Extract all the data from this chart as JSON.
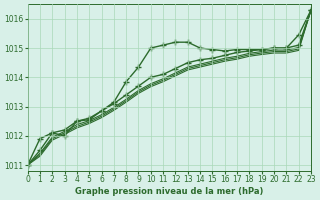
{
  "bg_color": "#d8f0e8",
  "grid_color": "#aad8b8",
  "line_color": "#2d6b2d",
  "text_color": "#2d6b2d",
  "xlabel": "Graphe pression niveau de la mer (hPa)",
  "xlim": [
    0,
    23
  ],
  "ylim": [
    1010.8,
    1016.5
  ],
  "yticks": [
    1011,
    1012,
    1013,
    1014,
    1015,
    1016
  ],
  "xticks": [
    0,
    1,
    2,
    3,
    4,
    5,
    6,
    7,
    8,
    9,
    10,
    11,
    12,
    13,
    14,
    15,
    16,
    17,
    18,
    19,
    20,
    21,
    22,
    23
  ],
  "series_main1": [
    1011.0,
    1011.9,
    1012.1,
    1012.0,
    1012.5,
    1012.55,
    1012.85,
    1013.15,
    1013.85,
    1014.35,
    1015.0,
    1015.1,
    1015.2,
    1015.2,
    1015.0,
    1014.95,
    1014.9,
    1014.95,
    1014.95,
    1014.95,
    1015.0,
    1015.0,
    1015.45,
    1016.3
  ],
  "series_main2": [
    1011.0,
    1011.5,
    1012.1,
    1012.2,
    1012.5,
    1012.6,
    1012.85,
    1013.1,
    1013.4,
    1013.7,
    1014.0,
    1014.1,
    1014.3,
    1014.5,
    1014.6,
    1014.65,
    1014.75,
    1014.85,
    1014.9,
    1014.95,
    1015.0,
    1015.0,
    1015.1,
    1016.3
  ],
  "series_line1": [
    1011.0,
    1011.4,
    1011.95,
    1012.15,
    1012.38,
    1012.52,
    1012.72,
    1012.97,
    1013.25,
    1013.55,
    1013.78,
    1013.95,
    1014.15,
    1014.35,
    1014.45,
    1014.55,
    1014.65,
    1014.72,
    1014.82,
    1014.88,
    1014.93,
    1014.93,
    1015.02,
    1016.3
  ],
  "series_line2": [
    1011.0,
    1011.35,
    1011.9,
    1012.1,
    1012.32,
    1012.47,
    1012.67,
    1012.92,
    1013.2,
    1013.5,
    1013.73,
    1013.9,
    1014.1,
    1014.3,
    1014.4,
    1014.5,
    1014.6,
    1014.67,
    1014.77,
    1014.83,
    1014.88,
    1014.88,
    1014.97,
    1016.3
  ],
  "series_line3": [
    1011.0,
    1011.3,
    1011.85,
    1012.05,
    1012.27,
    1012.42,
    1012.62,
    1012.87,
    1013.15,
    1013.45,
    1013.68,
    1013.85,
    1014.05,
    1014.25,
    1014.35,
    1014.45,
    1014.55,
    1014.62,
    1014.72,
    1014.78,
    1014.83,
    1014.83,
    1014.92,
    1016.3
  ]
}
